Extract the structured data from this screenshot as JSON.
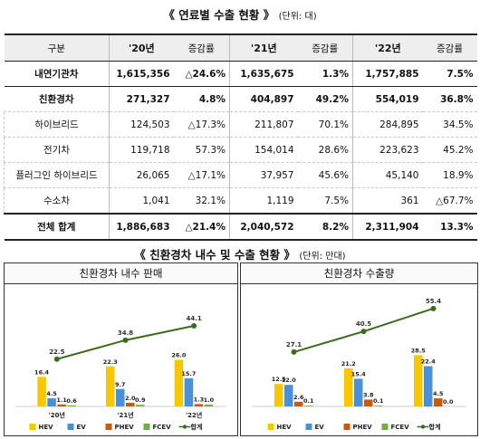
{
  "table_title": "《 연료별 수출 현황 》",
  "table_unit": "(단위: 대)",
  "table": {
    "headers": [
      "구분",
      "'20년",
      "증감률",
      "'21년",
      "증감률",
      "'22년",
      "증감률"
    ],
    "rows": [
      {
        "label": "내연기관차",
        "cells": [
          "1,615,356",
          "△24.6%",
          "1,635,675",
          "1.3%",
          "1,757,885",
          "7.5%"
        ]
      },
      {
        "label": "친환경차",
        "cells": [
          "271,327",
          "4.8%",
          "404,897",
          "49.2%",
          "554,019",
          "36.8%"
        ]
      },
      {
        "label": "하이브리드",
        "cells": [
          "124,503",
          "△17.3%",
          "211,807",
          "70.1%",
          "284,895",
          "34.5%"
        ]
      },
      {
        "label": "전기차",
        "cells": [
          "119,718",
          "57.3%",
          "154,014",
          "28.6%",
          "223,623",
          "45.2%"
        ]
      },
      {
        "label": "플러그인 하이브리드",
        "cells": [
          "26,065",
          "△17.1%",
          "37,957",
          "45.6%",
          "45,140",
          "18.9%"
        ]
      },
      {
        "label": "수소차",
        "cells": [
          "1,041",
          "32.1%",
          "1,119",
          "7.5%",
          "361",
          "△67.7%"
        ]
      },
      {
        "label": "전체 합계",
        "cells": [
          "1,886,683",
          "△21.4%",
          "2,040,572",
          "8.2%",
          "2,311,904",
          "13.3%"
        ]
      }
    ]
  },
  "charts_title": "《 친환경차 내수 및 수출 현황 》",
  "charts_unit": "(단위: 만대)",
  "colors": {
    "HEV": "#f7c800",
    "EV": "#4a90d9",
    "PHEV": "#c55a11",
    "FCEV": "#70ad47",
    "total": "#3d6b1e"
  },
  "chart_data": [
    {
      "type": "bar",
      "title": "친환경차 내수 판매",
      "categories": [
        "'20년",
        "'21년",
        "'22년"
      ],
      "series": [
        {
          "name": "HEV",
          "values": [
            16.4,
            22.3,
            26.0
          ]
        },
        {
          "name": "EV",
          "values": [
            4.5,
            9.7,
            15.7
          ]
        },
        {
          "name": "PHEV",
          "values": [
            1.1,
            2.0,
            1.3
          ]
        },
        {
          "name": "FCEV",
          "values": [
            0.6,
            0.9,
            1.0
          ]
        }
      ],
      "line": {
        "name": "합계",
        "values": [
          22.5,
          34.8,
          44.1
        ]
      },
      "legend_position": "bottom"
    },
    {
      "type": "bar",
      "title": "친환경차 수출량",
      "categories": [
        "",
        "",
        ""
      ],
      "series": [
        {
          "name": "HEV",
          "values": [
            12.5,
            21.2,
            28.5
          ]
        },
        {
          "name": "EV",
          "values": [
            12.0,
            15.4,
            22.4
          ]
        },
        {
          "name": "PHEV",
          "values": [
            2.6,
            3.8,
            4.5
          ]
        },
        {
          "name": "FCEV",
          "values": [
            0.1,
            0.1,
            0.0
          ]
        }
      ],
      "line": {
        "name": "합계",
        "values": [
          27.1,
          40.5,
          55.4
        ]
      },
      "legend_position": "bottom"
    }
  ]
}
